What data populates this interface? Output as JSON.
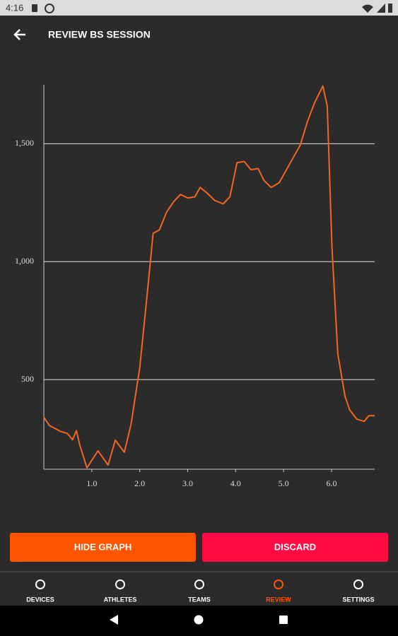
{
  "status_bar": {
    "time": "4:16"
  },
  "app_bar": {
    "title": "REVIEW BS SESSION"
  },
  "chart_data": {
    "type": "line",
    "x": [
      0,
      0.12,
      0.34,
      0.49,
      0.6,
      0.68,
      0.75,
      0.9,
      1.13,
      1.34,
      1.49,
      1.68,
      1.82,
      2.0,
      2.15,
      2.28,
      2.41,
      2.56,
      2.71,
      2.85,
      3.0,
      3.15,
      3.26,
      3.41,
      3.56,
      3.74,
      3.88,
      4.03,
      4.18,
      4.32,
      4.47,
      4.59,
      4.74,
      4.91,
      5.13,
      5.35,
      5.5,
      5.65,
      5.82,
      5.91,
      6.01,
      6.13,
      6.28,
      6.38,
      6.53,
      6.68,
      6.78,
      6.9
    ],
    "series": [
      {
        "color": "#f26522",
        "values": [
          340,
          305,
          281,
          272,
          245,
          284,
          222,
          126,
          198,
          138,
          243,
          192,
          311,
          551,
          850,
          1120,
          1135,
          1210,
          1255,
          1285,
          1270,
          1275,
          1315,
          1290,
          1260,
          1245,
          1275,
          1420,
          1425,
          1390,
          1395,
          1345,
          1315,
          1335,
          1415,
          1495,
          1595,
          1675,
          1745,
          1660,
          1060,
          611,
          431,
          371,
          332,
          323,
          347,
          347
        ]
      }
    ],
    "xlim": [
      0,
      6.9
    ],
    "ylim": [
      120,
      1750
    ],
    "xticks": [
      {
        "value": 1,
        "label": "1.0"
      },
      {
        "value": 2,
        "label": "2.0"
      },
      {
        "value": 3,
        "label": "3.0"
      },
      {
        "value": 4,
        "label": "4.0"
      },
      {
        "value": 5,
        "label": "5.0"
      },
      {
        "value": 6,
        "label": "6.0"
      }
    ],
    "yticks": [
      500,
      {
        "value": 1000,
        "label": "1,000"
      },
      {
        "value": 1500,
        "label": "1,500"
      }
    ],
    "grid": true
  },
  "buttons": [
    "HIDE GRAPH",
    "DISCARD"
  ],
  "nav": [
    "DEVICES",
    "ATHLETES",
    "TEAMS",
    "REVIEW",
    "SETTINGS"
  ]
}
